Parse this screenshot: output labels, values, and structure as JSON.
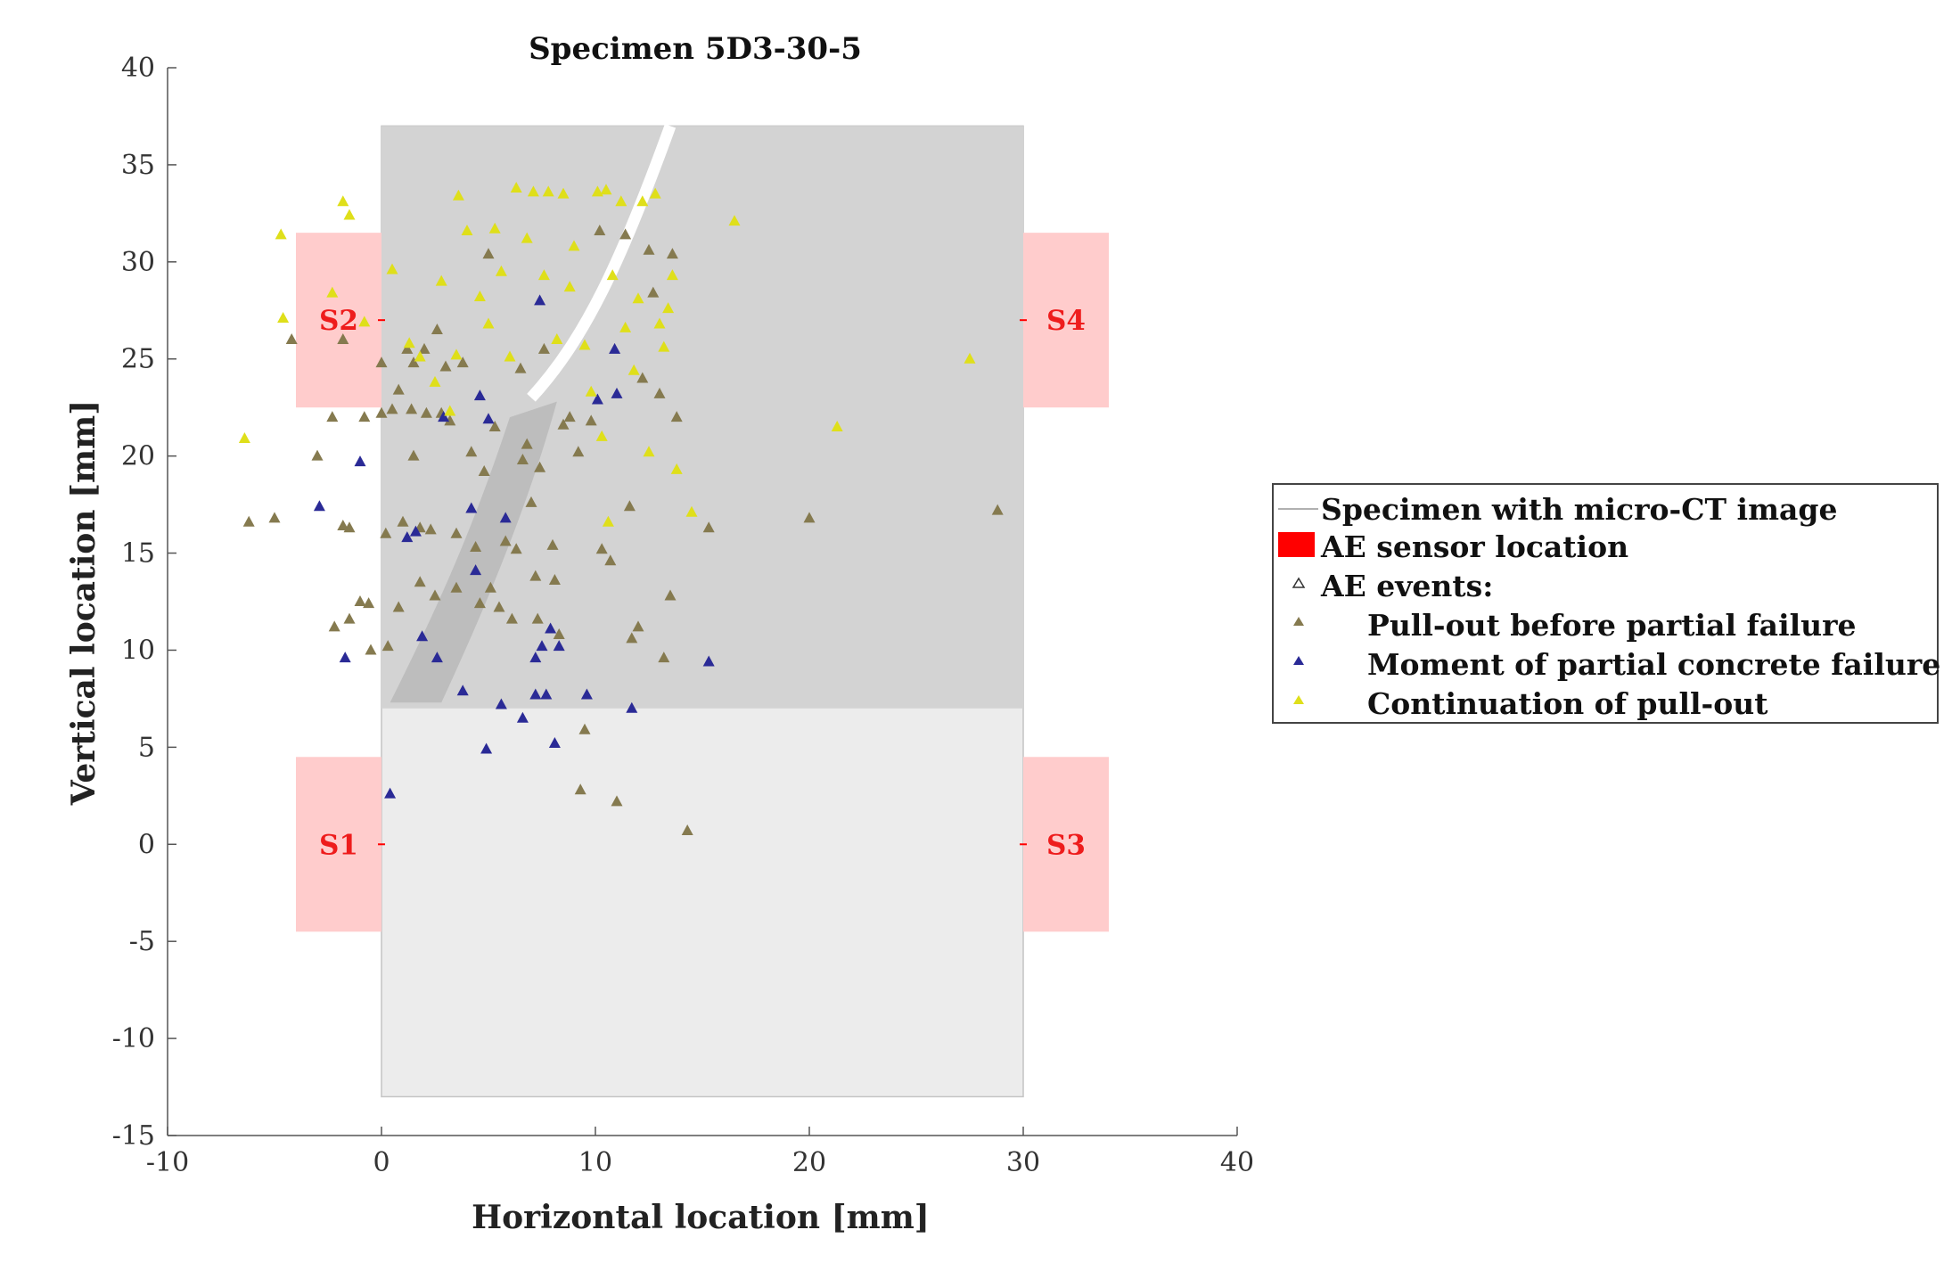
{
  "chart_data": {
    "type": "scatter",
    "title": "Specimen 5D3-30-5",
    "xlabel": "Horizontal location [mm]",
    "ylabel": "Vertical location [mm]",
    "xlim": [
      -10,
      40
    ],
    "ylim": [
      -15,
      40
    ],
    "xticks": [
      -10,
      0,
      10,
      20,
      30,
      40
    ],
    "yticks": [
      -15,
      -10,
      -5,
      0,
      5,
      10,
      15,
      20,
      25,
      30,
      35,
      40
    ],
    "specimen": {
      "x_range": [
        0,
        30
      ],
      "y_range": [
        -13,
        37
      ],
      "ct_image_y_range": [
        7,
        37
      ],
      "fill_color": "#ececec",
      "ct_fill_color": "#d3d3d3"
    },
    "sensors": [
      {
        "name": "S1",
        "x_range": [
          -4,
          0
        ],
        "y_range": [
          -4.5,
          4.5
        ],
        "center": [
          0,
          0
        ]
      },
      {
        "name": "S2",
        "x_range": [
          -4,
          0
        ],
        "y_range": [
          22.5,
          31.5
        ],
        "center": [
          0,
          27
        ]
      },
      {
        "name": "S3",
        "x_range": [
          30,
          34
        ],
        "y_range": [
          -4.5,
          4.5
        ],
        "center": [
          30,
          0
        ]
      },
      {
        "name": "S4",
        "x_range": [
          30,
          34
        ],
        "y_range": [
          22.5,
          31.5
        ],
        "center": [
          30,
          27
        ]
      }
    ],
    "sensor_color": "#ffcccc",
    "sensor_label_color": "#ee1c1c",
    "series": [
      {
        "name": "Pull-out before partial failure",
        "color": "#857a4f",
        "points": [
          [
            -6.2,
            16.6
          ],
          [
            -5,
            16.8
          ],
          [
            -4.2,
            26
          ],
          [
            -3,
            20
          ],
          [
            -2.3,
            22
          ],
          [
            -2.2,
            11.2
          ],
          [
            -1.8,
            16.4
          ],
          [
            -1.8,
            26
          ],
          [
            -1.5,
            11.6
          ],
          [
            -1.5,
            16.3
          ],
          [
            -1,
            12.5
          ],
          [
            -0.8,
            22
          ],
          [
            -0.6,
            12.4
          ],
          [
            -0.5,
            10
          ],
          [
            0,
            24.8
          ],
          [
            0,
            22.2
          ],
          [
            0.2,
            16
          ],
          [
            0.3,
            10.2
          ],
          [
            0.5,
            22.4
          ],
          [
            0.8,
            23.4
          ],
          [
            0.8,
            12.2
          ],
          [
            1,
            16.6
          ],
          [
            1.2,
            25.5
          ],
          [
            1.4,
            22.4
          ],
          [
            1.5,
            24.8
          ],
          [
            1.5,
            20
          ],
          [
            1.8,
            16.3
          ],
          [
            1.8,
            13.5
          ],
          [
            2,
            25.5
          ],
          [
            2.1,
            22.2
          ],
          [
            2.3,
            16.2
          ],
          [
            2.5,
            12.8
          ],
          [
            2.6,
            26.5
          ],
          [
            2.8,
            22.2
          ],
          [
            3,
            24.6
          ],
          [
            3.2,
            21.8
          ],
          [
            3.5,
            16
          ],
          [
            3.5,
            13.2
          ],
          [
            3.8,
            24.8
          ],
          [
            4.2,
            20.2
          ],
          [
            4.4,
            15.3
          ],
          [
            4.6,
            12.4
          ],
          [
            4.8,
            19.2
          ],
          [
            5,
            30.4
          ],
          [
            5.1,
            13.2
          ],
          [
            5.3,
            21.5
          ],
          [
            5.5,
            12.2
          ],
          [
            5.8,
            15.6
          ],
          [
            6.1,
            11.6
          ],
          [
            6.3,
            15.2
          ],
          [
            6.5,
            24.5
          ],
          [
            6.6,
            19.8
          ],
          [
            6.8,
            20.6
          ],
          [
            7,
            17.6
          ],
          [
            7.2,
            13.8
          ],
          [
            7.3,
            11.6
          ],
          [
            7.4,
            19.4
          ],
          [
            7.6,
            25.5
          ],
          [
            8,
            15.4
          ],
          [
            8.1,
            13.6
          ],
          [
            8.3,
            10.8
          ],
          [
            8.5,
            21.6
          ],
          [
            8.8,
            22
          ],
          [
            9.2,
            20.2
          ],
          [
            9.5,
            5.9
          ],
          [
            9.8,
            21.8
          ],
          [
            10.2,
            31.6
          ],
          [
            10.3,
            15.2
          ],
          [
            10.7,
            14.6
          ],
          [
            11,
            2.2
          ],
          [
            11.4,
            31.4
          ],
          [
            11.6,
            17.4
          ],
          [
            11.7,
            10.6
          ],
          [
            12,
            11.2
          ],
          [
            12.2,
            24
          ],
          [
            12.5,
            30.6
          ],
          [
            12.7,
            28.4
          ],
          [
            13,
            23.2
          ],
          [
            13.2,
            9.6
          ],
          [
            13.5,
            12.8
          ],
          [
            13.6,
            30.4
          ],
          [
            13.8,
            22
          ],
          [
            14.3,
            0.7
          ],
          [
            15.3,
            16.3
          ],
          [
            20,
            16.8
          ],
          [
            28.8,
            17.2
          ],
          [
            9.3,
            2.8
          ]
        ]
      },
      {
        "name": "Moment of partial concrete failure",
        "color": "#2a2a96",
        "points": [
          [
            -2.9,
            17.4
          ],
          [
            -1.7,
            9.6
          ],
          [
            -1,
            19.7
          ],
          [
            0.4,
            2.6
          ],
          [
            1.2,
            15.8
          ],
          [
            1.6,
            16.1
          ],
          [
            1.9,
            10.7
          ],
          [
            2.6,
            9.6
          ],
          [
            2.9,
            22
          ],
          [
            3.8,
            7.9
          ],
          [
            4.2,
            17.3
          ],
          [
            4.4,
            14.1
          ],
          [
            4.6,
            23.1
          ],
          [
            4.9,
            4.9
          ],
          [
            5,
            21.9
          ],
          [
            5.6,
            7.2
          ],
          [
            5.8,
            16.8
          ],
          [
            6.6,
            6.5
          ],
          [
            7.2,
            9.6
          ],
          [
            7.2,
            7.7
          ],
          [
            7.4,
            28
          ],
          [
            7.5,
            10.2
          ],
          [
            7.7,
            7.7
          ],
          [
            7.9,
            11.1
          ],
          [
            8.1,
            5.2
          ],
          [
            8.3,
            10.2
          ],
          [
            9.6,
            7.7
          ],
          [
            10.1,
            22.9
          ],
          [
            10.9,
            25.5
          ],
          [
            11,
            23.2
          ],
          [
            11.7,
            7
          ],
          [
            15.3,
            9.4
          ]
        ]
      },
      {
        "name": "Continuation of pull-out",
        "color": "#dfdf1a",
        "points": [
          [
            -6.4,
            20.9
          ],
          [
            -4.7,
            31.4
          ],
          [
            -4.6,
            27.1
          ],
          [
            -2.3,
            28.4
          ],
          [
            -1.8,
            33.1
          ],
          [
            -1.5,
            32.4
          ],
          [
            -0.8,
            26.9
          ],
          [
            0.5,
            29.6
          ],
          [
            1.3,
            25.8
          ],
          [
            1.8,
            25.1
          ],
          [
            2.5,
            23.8
          ],
          [
            2.8,
            29
          ],
          [
            3.2,
            22.3
          ],
          [
            3.5,
            25.2
          ],
          [
            3.6,
            33.4
          ],
          [
            4,
            31.6
          ],
          [
            4.6,
            28.2
          ],
          [
            5,
            26.8
          ],
          [
            5.3,
            31.7
          ],
          [
            5.6,
            29.5
          ],
          [
            6,
            25.1
          ],
          [
            6.3,
            33.8
          ],
          [
            6.8,
            31.2
          ],
          [
            7.1,
            33.6
          ],
          [
            7.6,
            29.3
          ],
          [
            7.8,
            33.6
          ],
          [
            8.2,
            26
          ],
          [
            8.5,
            33.5
          ],
          [
            8.8,
            28.7
          ],
          [
            9,
            30.8
          ],
          [
            9.5,
            25.7
          ],
          [
            9.8,
            23.3
          ],
          [
            10.1,
            33.6
          ],
          [
            10.3,
            21
          ],
          [
            10.5,
            33.7
          ],
          [
            10.6,
            16.6
          ],
          [
            10.8,
            29.3
          ],
          [
            11.2,
            33.1
          ],
          [
            11.4,
            26.6
          ],
          [
            11.8,
            24.4
          ],
          [
            12,
            28.1
          ],
          [
            12.2,
            33.1
          ],
          [
            12.5,
            20.2
          ],
          [
            12.8,
            33.5
          ],
          [
            13,
            26.8
          ],
          [
            13.2,
            25.6
          ],
          [
            13.4,
            27.6
          ],
          [
            13.6,
            29.3
          ],
          [
            13.8,
            19.3
          ],
          [
            14.5,
            17.1
          ],
          [
            16.5,
            32.1
          ],
          [
            21.3,
            21.5
          ],
          [
            27.5,
            25
          ]
        ]
      }
    ],
    "legend": {
      "placement": "right",
      "entries": [
        {
          "label": "Specimen with micro-CT image",
          "marker": "line"
        },
        {
          "label": "AE sensor location",
          "marker": "filled-rect"
        },
        {
          "label": "AE events:",
          "marker": "open-triangle"
        },
        {
          "label": "Pull-out before partial failure",
          "marker": "triangle",
          "series": 0
        },
        {
          "label": "Moment of partial concrete failure",
          "marker": "triangle",
          "series": 1
        },
        {
          "label": "Continuation of pull-out",
          "marker": "triangle",
          "series": 2
        }
      ]
    }
  }
}
